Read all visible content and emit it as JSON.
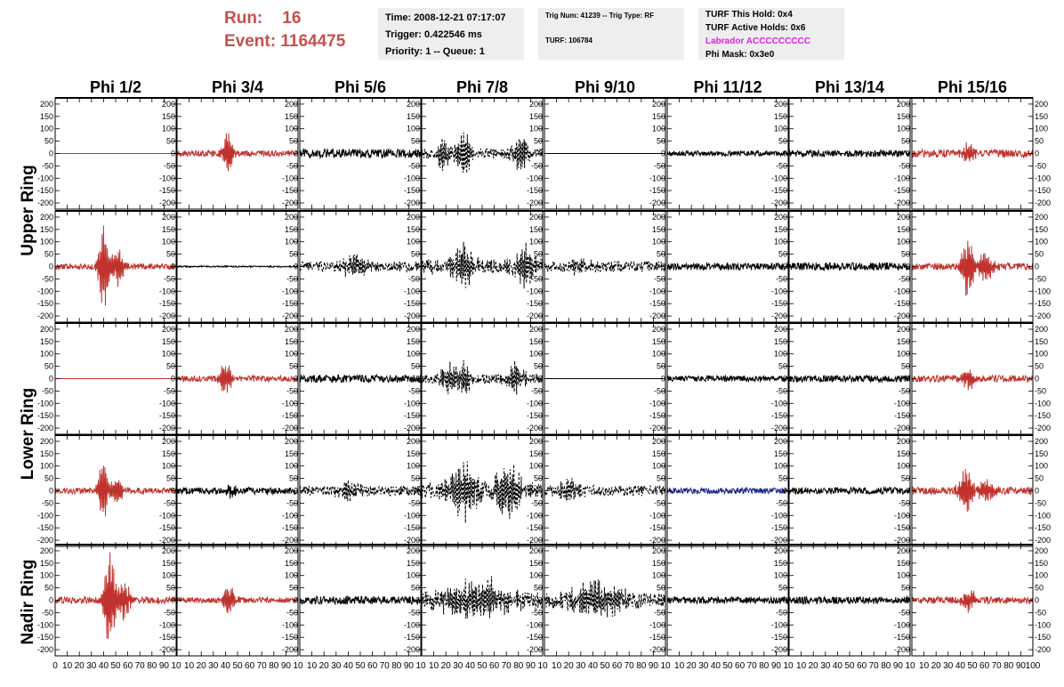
{
  "header": {
    "run_label": "Run:",
    "run_value": "16",
    "event_label": "Event:",
    "event_value": "1164475"
  },
  "info_box_1": {
    "time": "Time: 2008-12-21 07:17:07",
    "trigger": "Trigger: 0.422546 ms",
    "priority": "Priority: 1 -- Queue: 1"
  },
  "info_box_2": {
    "trig_num": "Trig Num: 41239 -- Trig Type: RF",
    "turf": "TURF: 106784"
  },
  "info_box_3": {
    "this_hold": "TURF This Hold: 0x4",
    "active_holds": "TURF Active Holds: 0x6",
    "labrador": "Labrador ACCCCCCCCC",
    "phi_mask": "Phi Mask: 0x3e0"
  },
  "colors": {
    "red": "#c0322d",
    "black": "#000000",
    "blue": "#1a2a8a",
    "header_red": "#c8504b",
    "magenta": "#e020e0",
    "box_bg": "#eeeeee"
  },
  "chart_data": {
    "type": "line",
    "columns": [
      "Phi 1/2",
      "Phi 3/4",
      "Phi 5/6",
      "Phi 7/8",
      "Phi 9/10",
      "Phi 11/12",
      "Phi 13/14",
      "Phi 15/16"
    ],
    "rows": [
      "Upper Ring",
      "Lower Ring",
      "Nadir Ring"
    ],
    "xlim": [
      0,
      100
    ],
    "ylim": [
      -225,
      225
    ],
    "x_ticks": [
      0,
      10,
      20,
      30,
      40,
      50,
      60,
      70,
      80,
      90,
      100
    ],
    "x_tick_labels_last_col": [
      "0",
      "10",
      "20",
      "30",
      "40",
      "50",
      "60",
      "70",
      "80",
      "90",
      "100"
    ],
    "x_tick_labels_other_col": [
      "0",
      "10",
      "20",
      "30",
      "40",
      "50",
      "60",
      "70",
      "80",
      "90",
      "10"
    ],
    "y_ticks": [
      200,
      150,
      100,
      50,
      0,
      -50,
      -100,
      -150,
      -200
    ],
    "y_tick_labels": [
      "200",
      "150",
      "100",
      "50",
      "0",
      "-50",
      "-100",
      "-150",
      "-200"
    ],
    "panels": [
      [
        {
          "color": "red",
          "style": "solid",
          "noise": 0,
          "bursts": []
        },
        {
          "color": "red",
          "style": "solid",
          "noise": 12,
          "bursts": [
            {
              "center": 42,
              "amp": 110,
              "width": 4
            }
          ]
        },
        {
          "color": "black",
          "style": "solid",
          "noise": 18,
          "bursts": []
        },
        {
          "color": "black",
          "style": "dashed",
          "noise": 20,
          "bursts": [
            {
              "center": 18,
              "amp": 75,
              "width": 5
            },
            {
              "center": 35,
              "amp": 90,
              "width": 7
            },
            {
              "center": 82,
              "amp": 85,
              "width": 7
            }
          ]
        },
        {
          "color": "black",
          "style": "solid",
          "noise": 0,
          "bursts": []
        },
        {
          "color": "black",
          "style": "solid",
          "noise": 10,
          "bursts": []
        },
        {
          "color": "black",
          "style": "solid",
          "noise": 14,
          "bursts": []
        },
        {
          "color": "red",
          "style": "solid",
          "noise": 16,
          "bursts": [
            {
              "center": 47,
              "amp": 40,
              "width": 5
            }
          ]
        }
      ],
      [
        {
          "color": "red",
          "style": "solid",
          "noise": 12,
          "bursts": [
            {
              "center": 40,
              "amp": 210,
              "width": 4
            },
            {
              "center": 52,
              "amp": 80,
              "width": 6
            }
          ]
        },
        {
          "color": "black",
          "style": "solid",
          "noise": 3,
          "bursts": []
        },
        {
          "color": "black",
          "style": "dashed",
          "noise": 20,
          "bursts": [
            {
              "center": 45,
              "amp": 50,
              "width": 10
            }
          ]
        },
        {
          "color": "black",
          "style": "dashed",
          "noise": 30,
          "bursts": [
            {
              "center": 35,
              "amp": 90,
              "width": 10
            },
            {
              "center": 85,
              "amp": 95,
              "width": 8
            }
          ]
        },
        {
          "color": "black",
          "style": "dashed",
          "noise": 22,
          "bursts": [
            {
              "center": 30,
              "amp": 40,
              "width": 8
            }
          ]
        },
        {
          "color": "black",
          "style": "solid",
          "noise": 14,
          "bursts": []
        },
        {
          "color": "black",
          "style": "solid",
          "noise": 16,
          "bursts": []
        },
        {
          "color": "red",
          "style": "solid",
          "noise": 14,
          "bursts": [
            {
              "center": 46,
              "amp": 140,
              "width": 5
            },
            {
              "center": 60,
              "amp": 60,
              "width": 8
            }
          ]
        }
      ],
      [
        {
          "color": "red",
          "style": "solid",
          "noise": 0,
          "bursts": []
        },
        {
          "color": "red",
          "style": "solid",
          "noise": 12,
          "bursts": [
            {
              "center": 40,
              "amp": 70,
              "width": 5
            }
          ]
        },
        {
          "color": "black",
          "style": "solid",
          "noise": 16,
          "bursts": []
        },
        {
          "color": "black",
          "style": "dashed",
          "noise": 20,
          "bursts": [
            {
              "center": 22,
              "amp": 60,
              "width": 6
            },
            {
              "center": 35,
              "amp": 70,
              "width": 6
            },
            {
              "center": 78,
              "amp": 70,
              "width": 7
            }
          ]
        },
        {
          "color": "black",
          "style": "solid",
          "noise": 0,
          "bursts": []
        },
        {
          "color": "black",
          "style": "solid",
          "noise": 12,
          "bursts": []
        },
        {
          "color": "black",
          "style": "solid",
          "noise": 14,
          "bursts": []
        },
        {
          "color": "red",
          "style": "solid",
          "noise": 14,
          "bursts": [
            {
              "center": 47,
              "amp": 45,
              "width": 5
            }
          ]
        }
      ],
      [
        {
          "color": "red",
          "style": "solid",
          "noise": 12,
          "bursts": [
            {
              "center": 40,
              "amp": 150,
              "width": 4
            },
            {
              "center": 50,
              "amp": 70,
              "width": 6
            }
          ]
        },
        {
          "color": "black",
          "style": "solid",
          "noise": 14,
          "bursts": [
            {
              "center": 45,
              "amp": 25,
              "width": 6
            }
          ]
        },
        {
          "color": "black",
          "style": "dashed",
          "noise": 20,
          "bursts": [
            {
              "center": 40,
              "amp": 40,
              "width": 12
            }
          ]
        },
        {
          "color": "black",
          "style": "dashed",
          "noise": 30,
          "bursts": [
            {
              "center": 35,
              "amp": 110,
              "width": 14
            },
            {
              "center": 70,
              "amp": 110,
              "width": 14
            }
          ]
        },
        {
          "color": "black",
          "style": "dashed",
          "noise": 22,
          "bursts": [
            {
              "center": 20,
              "amp": 40,
              "width": 10
            }
          ]
        },
        {
          "color": "blue",
          "style": "solid",
          "noise": 12,
          "bursts": []
        },
        {
          "color": "black",
          "style": "solid",
          "noise": 14,
          "bursts": []
        },
        {
          "color": "red",
          "style": "solid",
          "noise": 16,
          "bursts": [
            {
              "center": 45,
              "amp": 110,
              "width": 6
            },
            {
              "center": 60,
              "amp": 50,
              "width": 8
            }
          ]
        }
      ],
      [
        {
          "color": "red",
          "style": "solid",
          "noise": 14,
          "bursts": [
            {
              "center": 45,
              "amp": 220,
              "width": 5
            },
            {
              "center": 57,
              "amp": 80,
              "width": 6
            }
          ]
        },
        {
          "color": "red",
          "style": "solid",
          "noise": 12,
          "bursts": [
            {
              "center": 43,
              "amp": 70,
              "width": 5
            }
          ]
        },
        {
          "color": "black",
          "style": "solid",
          "noise": 16,
          "bursts": []
        },
        {
          "color": "black",
          "style": "dashed",
          "noise": 32,
          "bursts": [
            {
              "center": 45,
              "amp": 80,
              "width": 30
            }
          ]
        },
        {
          "color": "black",
          "style": "dashed",
          "noise": 28,
          "bursts": [
            {
              "center": 45,
              "amp": 75,
              "width": 25
            }
          ]
        },
        {
          "color": "black",
          "style": "solid",
          "noise": 14,
          "bursts": []
        },
        {
          "color": "black",
          "style": "solid",
          "noise": 14,
          "bursts": []
        },
        {
          "color": "red",
          "style": "solid",
          "noise": 14,
          "bursts": [
            {
              "center": 47,
              "amp": 55,
              "width": 5
            }
          ]
        }
      ]
    ]
  }
}
